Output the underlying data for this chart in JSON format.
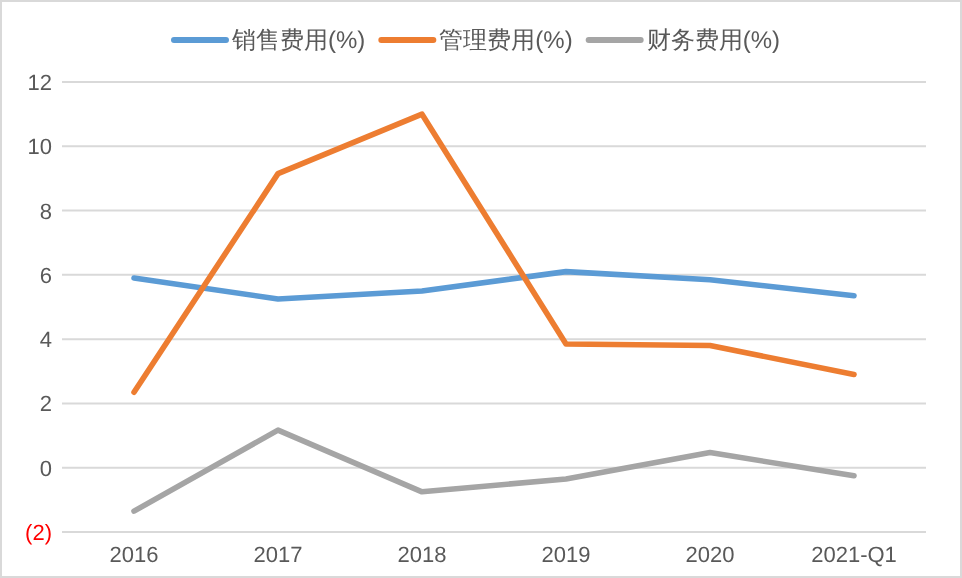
{
  "chart_data": {
    "type": "line",
    "categories": [
      "2016",
      "2017",
      "2018",
      "2019",
      "2020",
      "2021-Q1"
    ],
    "series": [
      {
        "name": "销售费用(%)",
        "color": "#5b9bd5",
        "values": [
          5.9,
          5.25,
          5.5,
          6.1,
          5.85,
          5.35
        ]
      },
      {
        "name": "管理费用(%)",
        "color": "#ed7d31",
        "values": [
          2.35,
          9.15,
          11.0,
          3.85,
          3.8,
          2.9
        ]
      },
      {
        "name": "财务费用(%)",
        "color": "#a5a5a5",
        "values": [
          -1.35,
          1.17,
          -0.75,
          -0.35,
          0.47,
          -0.25
        ]
      }
    ],
    "ylim": [
      -2,
      12
    ],
    "yticks": [
      {
        "value": -2,
        "label": "(2)"
      },
      0,
      2,
      4,
      6,
      8,
      10,
      12
    ],
    "grid": "y",
    "legend": "top",
    "marker": "none",
    "line_style": "solid"
  }
}
